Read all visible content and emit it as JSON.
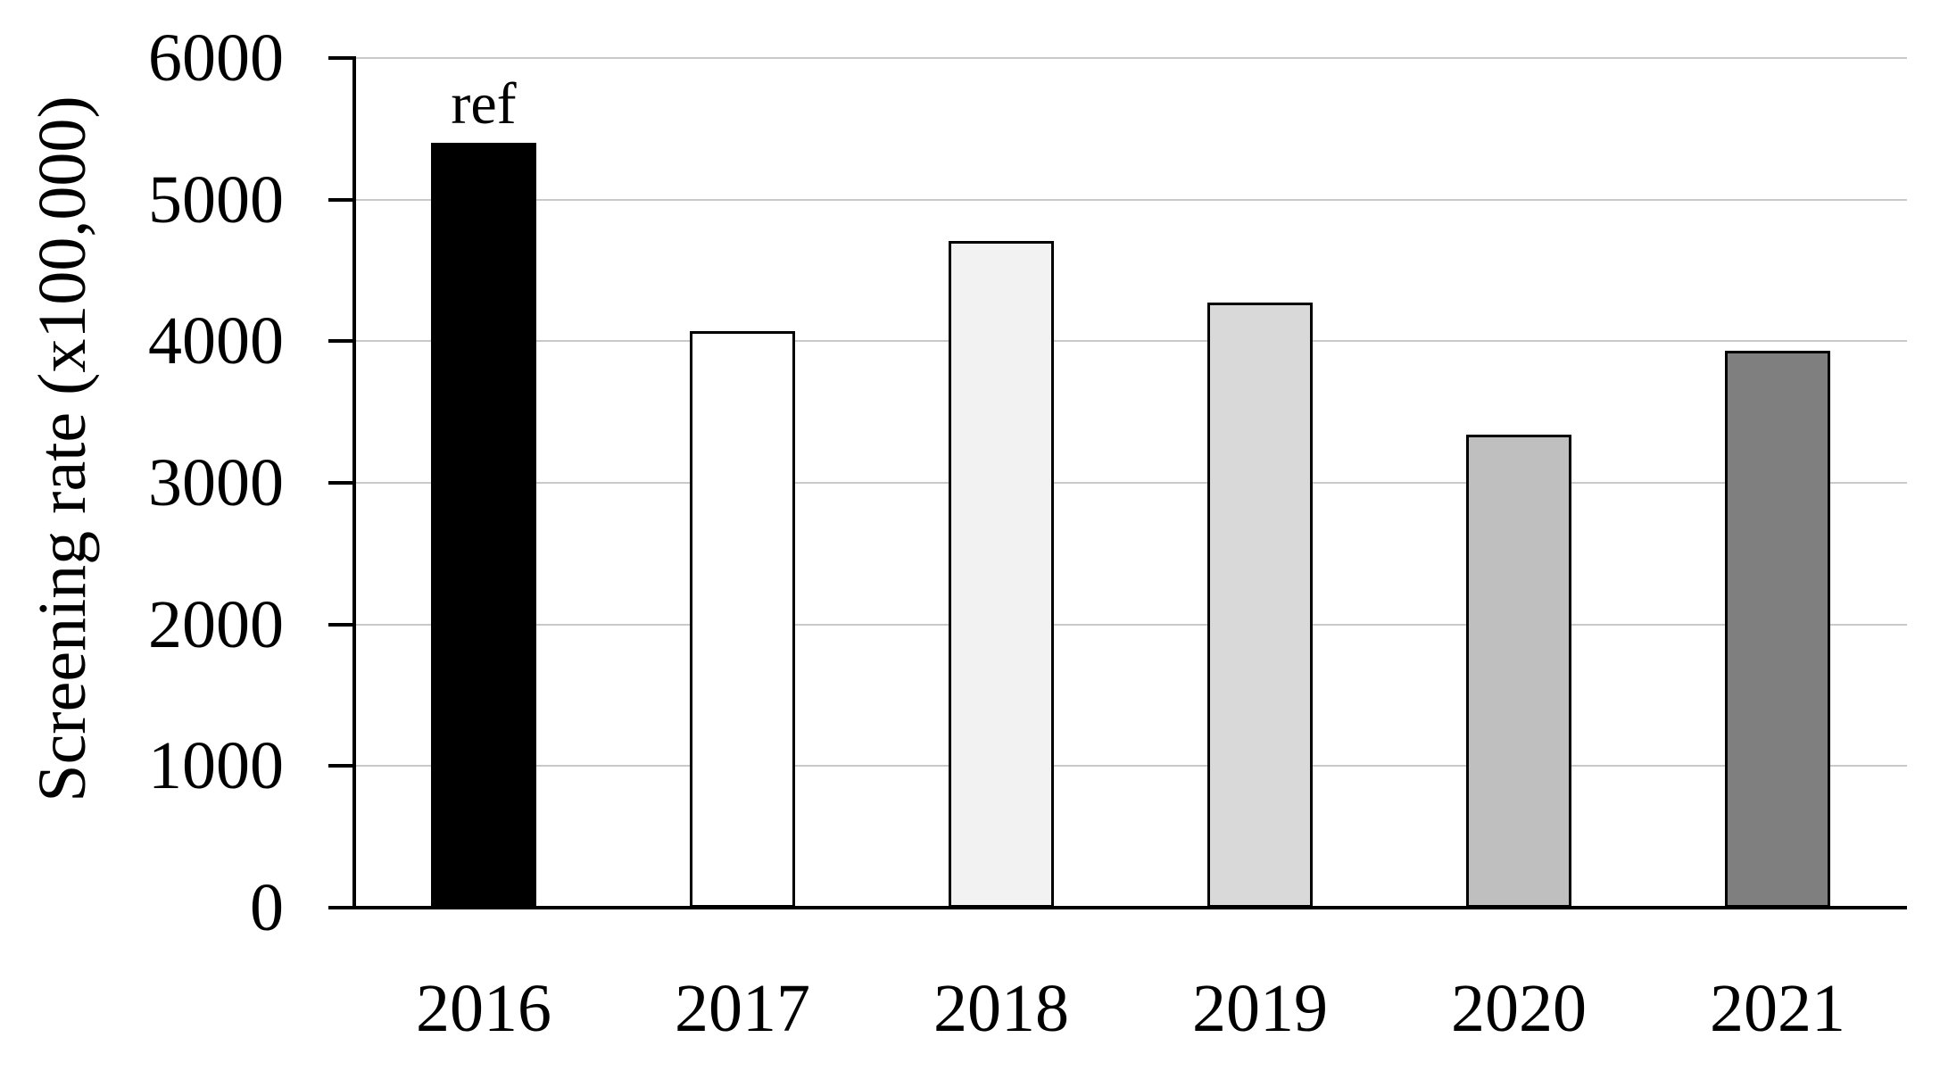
{
  "chart_data": {
    "type": "bar",
    "title": "",
    "categories": [
      "2016",
      "2017",
      "2018",
      "2019",
      "2020",
      "2021"
    ],
    "values": [
      5400,
      4070,
      4710,
      4270,
      3340,
      3930
    ],
    "bar_fills": [
      "#000000",
      "#ffffff",
      "#f2f2f2",
      "#d9d9d9",
      "#bfbfbf",
      "#7f7f7f"
    ],
    "bar_border_color": "#000000",
    "xlabel": "",
    "ylabel": "Screening rate (x100,000)",
    "ylim": [
      0,
      6000
    ],
    "y_ticks": [
      "6000",
      "5000",
      "4000",
      "3000",
      "2000",
      "1000",
      "0"
    ],
    "y_tick_values": [
      6000,
      5000,
      4000,
      3000,
      2000,
      1000,
      0
    ],
    "grid": true,
    "gridline_color": "#c9c9c9",
    "axis_color": "#000000",
    "legend": "none",
    "annotation": {
      "bar_index": 0,
      "text": "ref"
    }
  }
}
